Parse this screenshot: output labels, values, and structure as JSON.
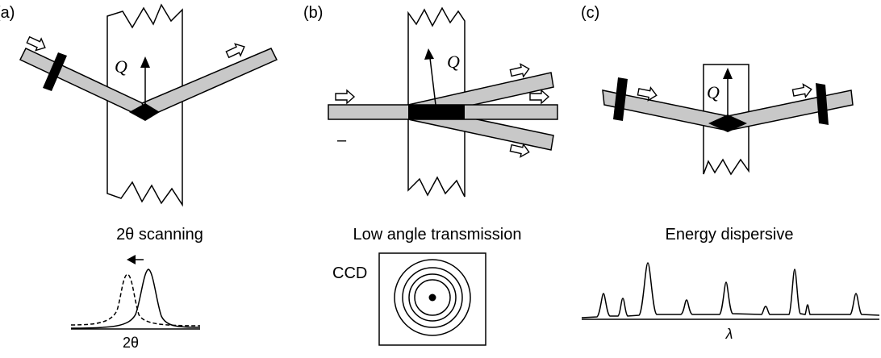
{
  "panels": {
    "a": {
      "label": "(a)",
      "q_label": "Q",
      "caption": "2θ scanning",
      "axis_label": "2θ"
    },
    "b": {
      "label": "(b)",
      "q_label": "Q",
      "caption": "Low angle transmission",
      "detector_label": "CCD",
      "dash_mark": "–"
    },
    "c": {
      "label": "(c)",
      "q_label": "Q",
      "caption": "Energy dispersive",
      "axis_label": "λ"
    }
  },
  "colors": {
    "beam": "#c8c8c8",
    "overlap": "#000000",
    "outline": "#000000"
  }
}
